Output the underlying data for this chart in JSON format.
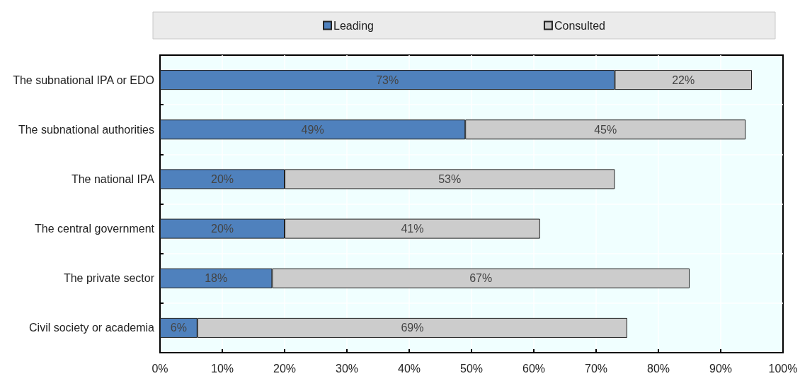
{
  "chart_data": {
    "type": "bar",
    "orientation": "horizontal",
    "stacked": true,
    "categories": [
      "The subnational IPA or EDO",
      "The subnational authorities",
      "The national IPA",
      "The central government",
      "The private sector",
      "Civil society or academia"
    ],
    "series": [
      {
        "name": "Leading",
        "color": "#4f81bd",
        "values": [
          73,
          49,
          20,
          20,
          18,
          6
        ],
        "value_labels": [
          "73%",
          "49%",
          "20%",
          "20%",
          "18%",
          "6%"
        ]
      },
      {
        "name": "Consulted",
        "color": "#cccccc",
        "values": [
          22,
          45,
          53,
          41,
          67,
          69
        ],
        "value_labels": [
          "22%",
          "45%",
          "53%",
          "41%",
          "67%",
          "69%"
        ]
      }
    ],
    "xlim": [
      0,
      100
    ],
    "xticks": [
      {
        "value": 0,
        "label": "0%"
      },
      {
        "value": 10,
        "label": "10%"
      },
      {
        "value": 20,
        "label": "20%"
      },
      {
        "value": 30,
        "label": "30%"
      },
      {
        "value": 40,
        "label": "40%"
      },
      {
        "value": 50,
        "label": "50%"
      },
      {
        "value": 60,
        "label": "60%"
      },
      {
        "value": 70,
        "label": "70%"
      },
      {
        "value": 80,
        "label": "80%"
      },
      {
        "value": 90,
        "label": "90%"
      },
      {
        "value": 100,
        "label": "100%"
      }
    ],
    "grid": true,
    "legend": "top"
  }
}
